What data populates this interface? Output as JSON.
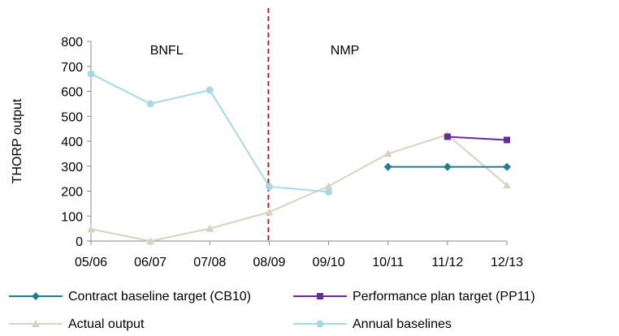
{
  "chart_data": {
    "type": "line",
    "categories": [
      "05/06",
      "06/07",
      "07/08",
      "08/09",
      "09/10",
      "10/11",
      "11/12",
      "12/13"
    ],
    "ylabel": "THORP output",
    "ylim": [
      0,
      800
    ],
    "yticks": [
      0,
      100,
      200,
      300,
      400,
      500,
      600,
      700,
      800
    ],
    "grid": false,
    "legend_position": "bottom",
    "regions": [
      {
        "label": "BNFL",
        "center_category": "06/07"
      },
      {
        "label": "NMP",
        "center_category": "09/10"
      }
    ],
    "divider": {
      "after_category": "07/08",
      "color": "#a52a2a",
      "style": "dashed"
    },
    "series": [
      {
        "name": "Contract baseline target (CB10)",
        "color": "#1f7f8f",
        "marker": "diamond",
        "values": [
          null,
          null,
          null,
          null,
          null,
          297,
          297,
          297
        ]
      },
      {
        "name": "Performance plan target (PP11)",
        "color": "#6a2d8f",
        "marker": "square",
        "values": [
          null,
          null,
          null,
          null,
          null,
          null,
          418,
          405
        ]
      },
      {
        "name": "Actual output",
        "color": "#d9d2bf",
        "marker": "triangle",
        "values": [
          48,
          0,
          50,
          116,
          220,
          350,
          426,
          223
        ]
      },
      {
        "name": "Annual baselines",
        "color": "#a8d8e2",
        "marker": "circle",
        "values": [
          670,
          550,
          605,
          218,
          197,
          null,
          null,
          null
        ]
      }
    ]
  }
}
